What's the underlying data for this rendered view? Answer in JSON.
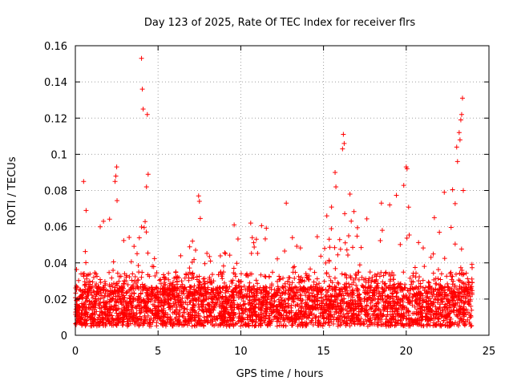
{
  "chart_data": {
    "type": "scatter",
    "title": "Day 123 of 2025, Rate Of TEC Index for receiver flrs",
    "xlabel": "GPS time / hours",
    "ylabel": "ROTI / TECUs",
    "xlim": [
      0,
      25
    ],
    "ylim": [
      0,
      0.16
    ],
    "x_ticks": [
      0,
      5,
      10,
      15,
      20,
      25
    ],
    "y_ticks": [
      0,
      0.02,
      0.04,
      0.06,
      0.08,
      0.1,
      0.12,
      0.14,
      0.16
    ],
    "x_tick_labels": [
      "0",
      "5",
      "10",
      "15",
      "20",
      "25"
    ],
    "y_tick_labels": [
      "0",
      "0.02",
      "0.04",
      "0.06",
      "0.08",
      "0.1",
      "0.12",
      "0.14",
      "0.16"
    ],
    "grid": true,
    "marker": "+",
    "color": "#ff0000",
    "series": [
      {
        "name": "ROTI",
        "x_range": [
          0,
          24
        ],
        "envelope": [
          [
            0.0,
            0.045
          ],
          [
            0.5,
            0.06
          ],
          [
            1.0,
            0.05
          ],
          [
            1.5,
            0.06
          ],
          [
            2.0,
            0.065
          ],
          [
            2.5,
            0.09
          ],
          [
            3.0,
            0.06
          ],
          [
            3.5,
            0.05
          ],
          [
            4.0,
            0.065
          ],
          [
            4.5,
            0.08
          ],
          [
            5.0,
            0.045
          ],
          [
            5.5,
            0.035
          ],
          [
            6.0,
            0.035
          ],
          [
            6.5,
            0.05
          ],
          [
            7.0,
            0.05
          ],
          [
            7.5,
            0.07
          ],
          [
            8.0,
            0.05
          ],
          [
            9.0,
            0.055
          ],
          [
            10.0,
            0.06
          ],
          [
            11.0,
            0.065
          ],
          [
            12.0,
            0.06
          ],
          [
            13.0,
            0.055
          ],
          [
            14.0,
            0.055
          ],
          [
            15.0,
            0.065
          ],
          [
            16.0,
            0.08
          ],
          [
            17.0,
            0.07
          ],
          [
            18.0,
            0.075
          ],
          [
            19.0,
            0.075
          ],
          [
            20.0,
            0.085
          ],
          [
            21.0,
            0.05
          ],
          [
            22.0,
            0.06
          ],
          [
            22.5,
            0.08
          ],
          [
            23.0,
            0.095
          ],
          [
            23.5,
            0.07
          ],
          [
            24.0,
            0.05
          ]
        ],
        "outliers": [
          [
            0.5,
            0.085
          ],
          [
            0.65,
            0.069
          ],
          [
            2.5,
            0.093
          ],
          [
            2.45,
            0.088
          ],
          [
            2.4,
            0.085
          ],
          [
            4.0,
            0.153
          ],
          [
            4.05,
            0.136
          ],
          [
            4.1,
            0.125
          ],
          [
            4.35,
            0.122
          ],
          [
            4.4,
            0.089
          ],
          [
            4.3,
            0.082
          ],
          [
            7.45,
            0.077
          ],
          [
            7.5,
            0.074
          ],
          [
            12.75,
            0.073
          ],
          [
            15.7,
            0.09
          ],
          [
            15.75,
            0.082
          ],
          [
            16.2,
            0.111
          ],
          [
            16.25,
            0.106
          ],
          [
            16.15,
            0.103
          ],
          [
            16.6,
            0.078
          ],
          [
            18.5,
            0.073
          ],
          [
            19.0,
            0.072
          ],
          [
            20.0,
            0.093
          ],
          [
            20.05,
            0.092
          ],
          [
            22.3,
            0.079
          ],
          [
            23.05,
            0.104
          ],
          [
            23.1,
            0.096
          ],
          [
            23.2,
            0.112
          ],
          [
            23.25,
            0.108
          ],
          [
            23.3,
            0.119
          ],
          [
            23.35,
            0.122
          ],
          [
            23.4,
            0.131
          ],
          [
            23.45,
            0.08
          ],
          [
            15.2,
            0.066
          ],
          [
            9.6,
            0.061
          ],
          [
            10.6,
            0.062
          ],
          [
            1.7,
            0.063
          ],
          [
            21.7,
            0.065
          ]
        ]
      }
    ]
  }
}
